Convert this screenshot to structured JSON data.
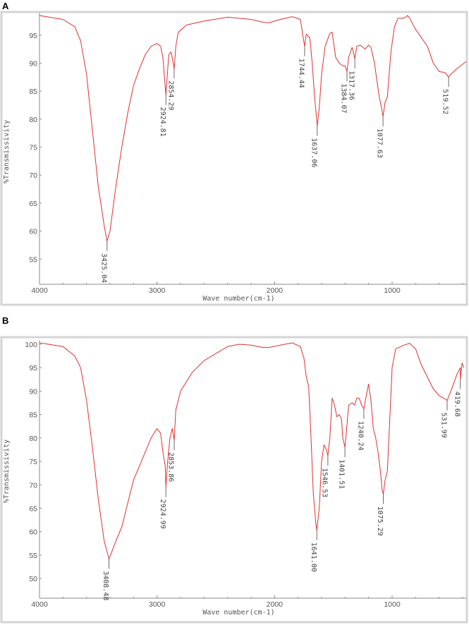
{
  "chart_data": [
    {
      "panel": "A",
      "type": "line",
      "xlabel": "Wave number(cm-1)",
      "ylabel": "%Transmissivity",
      "xlim": [
        4000,
        370
      ],
      "ylim": [
        50.5,
        99
      ],
      "x_reversed": true,
      "xticks": [
        4000,
        3000,
        2000,
        1000
      ],
      "yticks": [
        55,
        60,
        65,
        70,
        75,
        80,
        85,
        90,
        95
      ],
      "grid": false,
      "line_color": "#e03030",
      "series": [
        {
          "points": [
            [
              4000,
              98.5
            ],
            [
              3800,
              97.8
            ],
            [
              3700,
              96.5
            ],
            [
              3650,
              94
            ],
            [
              3600,
              88
            ],
            [
              3550,
              78
            ],
            [
              3500,
              68
            ],
            [
              3450,
              61
            ],
            [
              3425.04,
              58.2
            ],
            [
              3400,
              60
            ],
            [
              3350,
              68
            ],
            [
              3300,
              75
            ],
            [
              3250,
              81
            ],
            [
              3200,
              86
            ],
            [
              3150,
              89
            ],
            [
              3100,
              91.5
            ],
            [
              3050,
              93
            ],
            [
              3000,
              93.5
            ],
            [
              2970,
              93
            ],
            [
              2950,
              91
            ],
            [
              2924.81,
              84.3
            ],
            [
              2900,
              91.5
            ],
            [
              2880,
              92
            ],
            [
              2854.29,
              89
            ],
            [
              2840,
              93
            ],
            [
              2820,
              95.5
            ],
            [
              2750,
              96.8
            ],
            [
              2600,
              97.5
            ],
            [
              2400,
              98.2
            ],
            [
              2200,
              97.8
            ],
            [
              2100,
              97.3
            ],
            [
              2050,
              97.2
            ],
            [
              1950,
              97.8
            ],
            [
              1850,
              98.3
            ],
            [
              1780,
              97.8
            ],
            [
              1760,
              95
            ],
            [
              1744.44,
              93
            ],
            [
              1730,
              95.2
            ],
            [
              1700,
              94.5
            ],
            [
              1680,
              90
            ],
            [
              1660,
              84
            ],
            [
              1637.06,
              78.8
            ],
            [
              1620,
              82
            ],
            [
              1600,
              88
            ],
            [
              1570,
              93
            ],
            [
              1530,
              95.3
            ],
            [
              1510,
              95.5
            ],
            [
              1500,
              94
            ],
            [
              1480,
              91
            ],
            [
              1450,
              90
            ],
            [
              1420,
              89.5
            ],
            [
              1400,
              89.5
            ],
            [
              1384.07,
              88.5
            ],
            [
              1370,
              91
            ],
            [
              1340,
              92.8
            ],
            [
              1330,
              92
            ],
            [
              1317.36,
              90.8
            ],
            [
              1300,
              93
            ],
            [
              1270,
              93.2
            ],
            [
              1230,
              92.5
            ],
            [
              1200,
              93.2
            ],
            [
              1180,
              92.8
            ],
            [
              1150,
              90
            ],
            [
              1130,
              87
            ],
            [
              1110,
              84
            ],
            [
              1090,
              82
            ],
            [
              1077.63,
              80.5
            ],
            [
              1060,
              83
            ],
            [
              1040,
              84
            ],
            [
              1010,
              92
            ],
            [
              980,
              96.5
            ],
            [
              950,
              98
            ],
            [
              900,
              98
            ],
            [
              870,
              98.5
            ],
            [
              850,
              98
            ],
            [
              800,
              96
            ],
            [
              750,
              94.5
            ],
            [
              700,
              93
            ],
            [
              650,
              90
            ],
            [
              600,
              88.5
            ],
            [
              550,
              88.3
            ],
            [
              519.52,
              87.5
            ],
            [
              500,
              88
            ],
            [
              450,
              89
            ],
            [
              400,
              89.8
            ],
            [
              370,
              90.3
            ]
          ]
        }
      ],
      "peaks": [
        {
          "x": 3425.04,
          "y": 58.2,
          "label": "3425.04"
        },
        {
          "x": 2924.81,
          "y": 84.3,
          "label": "2924.81"
        },
        {
          "x": 2854.29,
          "y": 89,
          "label": "2854.29"
        },
        {
          "x": 1744.44,
          "y": 93,
          "label": "1744.44"
        },
        {
          "x": 1637.06,
          "y": 78.8,
          "label": "1637.06"
        },
        {
          "x": 1384.07,
          "y": 88.5,
          "label": "1384.07"
        },
        {
          "x": 1317.36,
          "y": 90.8,
          "label": "1317.36"
        },
        {
          "x": 1077.63,
          "y": 80.5,
          "label": "1077.63"
        },
        {
          "x": 519.52,
          "y": 87.5,
          "label": "519.52"
        }
      ]
    },
    {
      "panel": "B",
      "type": "line",
      "xlabel": "Wave number(cm-1)",
      "ylabel": "%Transmissivity",
      "xlim": [
        4000,
        370
      ],
      "ylim": [
        45.8,
        100.9
      ],
      "x_reversed": true,
      "xticks": [
        4000,
        3000,
        2000,
        1000
      ],
      "yticks": [
        50,
        55,
        60,
        65,
        70,
        75,
        80,
        85,
        90,
        95,
        100
      ],
      "grid": false,
      "line_color": "#e03030",
      "series": [
        {
          "points": [
            [
              4000,
              100.3
            ],
            [
              3800,
              99.5
            ],
            [
              3700,
              97.5
            ],
            [
              3650,
              95
            ],
            [
              3600,
              88
            ],
            [
              3550,
              78
            ],
            [
              3500,
              67
            ],
            [
              3450,
              58
            ],
            [
              3408.48,
              54.2
            ],
            [
              3380,
              56
            ],
            [
              3350,
              58
            ],
            [
              3300,
              61
            ],
            [
              3250,
              66
            ],
            [
              3200,
              71
            ],
            [
              3150,
              74
            ],
            [
              3100,
              77
            ],
            [
              3050,
              80
            ],
            [
              3000,
              82
            ],
            [
              2970,
              81
            ],
            [
              2950,
              77
            ],
            [
              2930,
              74
            ],
            [
              2924.99,
              69.5
            ],
            [
              2910,
              75
            ],
            [
              2890,
              80
            ],
            [
              2870,
              82
            ],
            [
              2853.86,
              79.5
            ],
            [
              2840,
              86
            ],
            [
              2800,
              90
            ],
            [
              2700,
              94
            ],
            [
              2600,
              96.5
            ],
            [
              2400,
              99.5
            ],
            [
              2300,
              100
            ],
            [
              2200,
              99.8
            ],
            [
              2100,
              99.3
            ],
            [
              2050,
              99.3
            ],
            [
              1950,
              99.8
            ],
            [
              1850,
              100.3
            ],
            [
              1780,
              99.5
            ],
            [
              1750,
              97
            ],
            [
              1730,
              93
            ],
            [
              1710,
              91
            ],
            [
              1690,
              80
            ],
            [
              1670,
              68
            ],
            [
              1650,
              62
            ],
            [
              1641.0,
              60.3
            ],
            [
              1620,
              65
            ],
            [
              1600,
              75
            ],
            [
              1580,
              78.5
            ],
            [
              1560,
              77.5
            ],
            [
              1546.53,
              76.2
            ],
            [
              1530,
              80
            ],
            [
              1510,
              88.5
            ],
            [
              1490,
              87
            ],
            [
              1470,
              84.5
            ],
            [
              1450,
              85
            ],
            [
              1430,
              84
            ],
            [
              1420,
              80
            ],
            [
              1401.51,
              78
            ],
            [
              1390,
              81
            ],
            [
              1370,
              87
            ],
            [
              1340,
              87.5
            ],
            [
              1320,
              87
            ],
            [
              1300,
              88.5
            ],
            [
              1280,
              88.5
            ],
            [
              1260,
              87
            ],
            [
              1240.24,
              86.2
            ],
            [
              1220,
              89
            ],
            [
              1200,
              91.5
            ],
            [
              1180,
              88
            ],
            [
              1160,
              82
            ],
            [
              1140,
              80
            ],
            [
              1120,
              77
            ],
            [
              1100,
              73
            ],
            [
              1085,
              69
            ],
            [
              1075.29,
              68
            ],
            [
              1060,
              71
            ],
            [
              1040,
              73
            ],
            [
              1020,
              84
            ],
            [
              1000,
              95
            ],
            [
              970,
              99
            ],
            [
              900,
              99.8
            ],
            [
              850,
              100.2
            ],
            [
              800,
              99
            ],
            [
              750,
              95.5
            ],
            [
              700,
              93
            ],
            [
              650,
              90.5
            ],
            [
              600,
              89
            ],
            [
              560,
              88.5
            ],
            [
              531.99,
              88
            ],
            [
              500,
              90
            ],
            [
              450,
              93.5
            ],
            [
              420,
              95
            ],
            [
              419.68,
              92.5
            ],
            [
              405,
              96
            ],
            [
              390,
              95
            ]
          ]
        }
      ],
      "peaks": [
        {
          "x": 3408.48,
          "y": 54.2,
          "label": "3408.48"
        },
        {
          "x": 2924.99,
          "y": 69.5,
          "label": "2924.99"
        },
        {
          "x": 2853.86,
          "y": 79.5,
          "label": "2853.86"
        },
        {
          "x": 1641.0,
          "y": 60.3,
          "label": "1641.00"
        },
        {
          "x": 1546.53,
          "y": 76.2,
          "label": "1546.53"
        },
        {
          "x": 1401.51,
          "y": 78,
          "label": "1401.51"
        },
        {
          "x": 1240.24,
          "y": 86.2,
          "label": "1240.24"
        },
        {
          "x": 1075.29,
          "y": 68,
          "label": "1075.29"
        },
        {
          "x": 531.99,
          "y": 88,
          "label": "531.99"
        },
        {
          "x": 419.68,
          "y": 92.5,
          "label": "419.68"
        }
      ]
    }
  ]
}
